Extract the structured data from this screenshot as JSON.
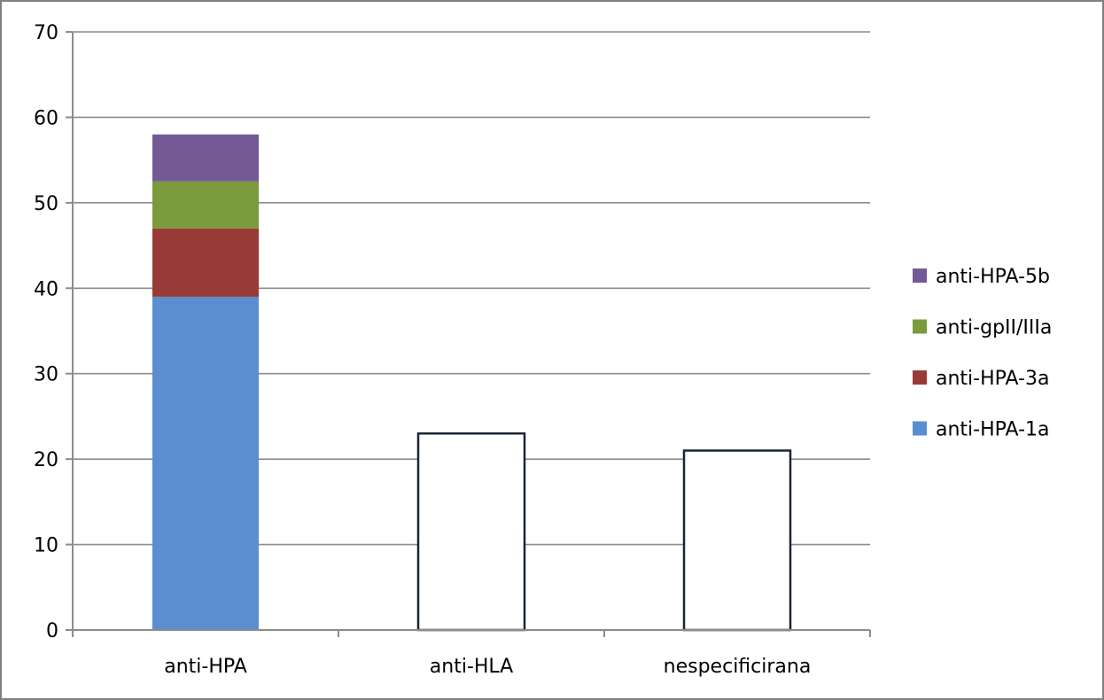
{
  "chart_data": {
    "type": "bar",
    "stacked": true,
    "categories": [
      "anti-HPA",
      "anti-HLA",
      "nespecificirana"
    ],
    "series": [
      {
        "name": "anti-HPA-1a",
        "color": "#5b8ed0",
        "values": [
          39,
          null,
          null
        ]
      },
      {
        "name": "anti-HPA-3a",
        "color": "#9a3a37",
        "values": [
          8,
          null,
          null
        ]
      },
      {
        "name": "anti-gpII/IIIa",
        "color": "#7a9a3c",
        "values": [
          5.5,
          null,
          null
        ]
      },
      {
        "name": "anti-HPA-5b",
        "color": "#735a95",
        "values": [
          5.5,
          null,
          null
        ]
      }
    ],
    "unfilled_bars": [
      {
        "category": "anti-HLA",
        "value": 23
      },
      {
        "category": "nespecificirana",
        "value": 21
      }
    ],
    "unfilled_fill": "#ffffff",
    "unfilled_stroke": "#1a2535",
    "ylim": [
      0,
      70
    ],
    "yticks": [
      "0",
      "10",
      "20",
      "30",
      "40",
      "50",
      "60",
      "70"
    ],
    "grid": true,
    "legend_position": "right",
    "legend_order": [
      "anti-HPA-5b",
      "anti-gpII/IIIa",
      "anti-HPA-3a",
      "anti-HPA-1a"
    ],
    "title": "",
    "xlabel": "",
    "ylabel": ""
  }
}
